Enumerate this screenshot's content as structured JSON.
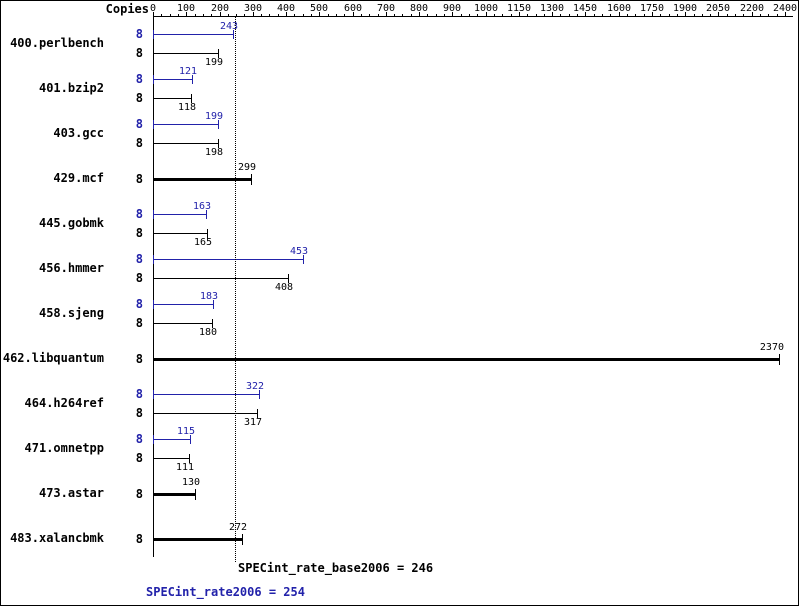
{
  "chart_data": {
    "type": "bar",
    "orientation": "horizontal",
    "copies_header": "Copies",
    "axis_ticks": [
      0,
      100,
      200,
      300,
      400,
      500,
      600,
      700,
      800,
      900,
      1000,
      1150,
      1300,
      1450,
      1600,
      1750,
      1900,
      2050,
      2200,
      2400
    ],
    "colors": {
      "peak": "#2222aa",
      "base": "#000000"
    },
    "benchmarks": [
      {
        "name": "400.perlbench",
        "copies": "8",
        "peak": 243,
        "base": 199,
        "style": "double"
      },
      {
        "name": "401.bzip2",
        "copies": "8",
        "peak": 121,
        "base": 118,
        "style": "double"
      },
      {
        "name": "403.gcc",
        "copies": "8",
        "peak": 199,
        "base": 198,
        "style": "double"
      },
      {
        "name": "429.mcf",
        "copies": "8",
        "peak": 299,
        "base": 299,
        "style": "single"
      },
      {
        "name": "445.gobmk",
        "copies": "8",
        "peak": 163,
        "base": 165,
        "style": "double"
      },
      {
        "name": "456.hmmer",
        "copies": "8",
        "peak": 453,
        "base": 408,
        "style": "double"
      },
      {
        "name": "458.sjeng",
        "copies": "8",
        "peak": 183,
        "base": 180,
        "style": "double"
      },
      {
        "name": "462.libquantum",
        "copies": "8",
        "peak": 2370,
        "base": 2370,
        "style": "single"
      },
      {
        "name": "464.h264ref",
        "copies": "8",
        "peak": 322,
        "base": 317,
        "style": "double"
      },
      {
        "name": "471.omnetpp",
        "copies": "8",
        "peak": 115,
        "base": 111,
        "style": "double"
      },
      {
        "name": "473.astar",
        "copies": "8",
        "peak": 130,
        "base": 130,
        "style": "single"
      },
      {
        "name": "483.xalancbmk",
        "copies": "8",
        "peak": 272,
        "base": 272,
        "style": "single"
      }
    ],
    "footer": {
      "base_label": "SPECint_rate_base2006 = 246",
      "base_value": 246,
      "peak_label": "SPECint_rate2006 = 254",
      "peak_value": 254
    }
  }
}
